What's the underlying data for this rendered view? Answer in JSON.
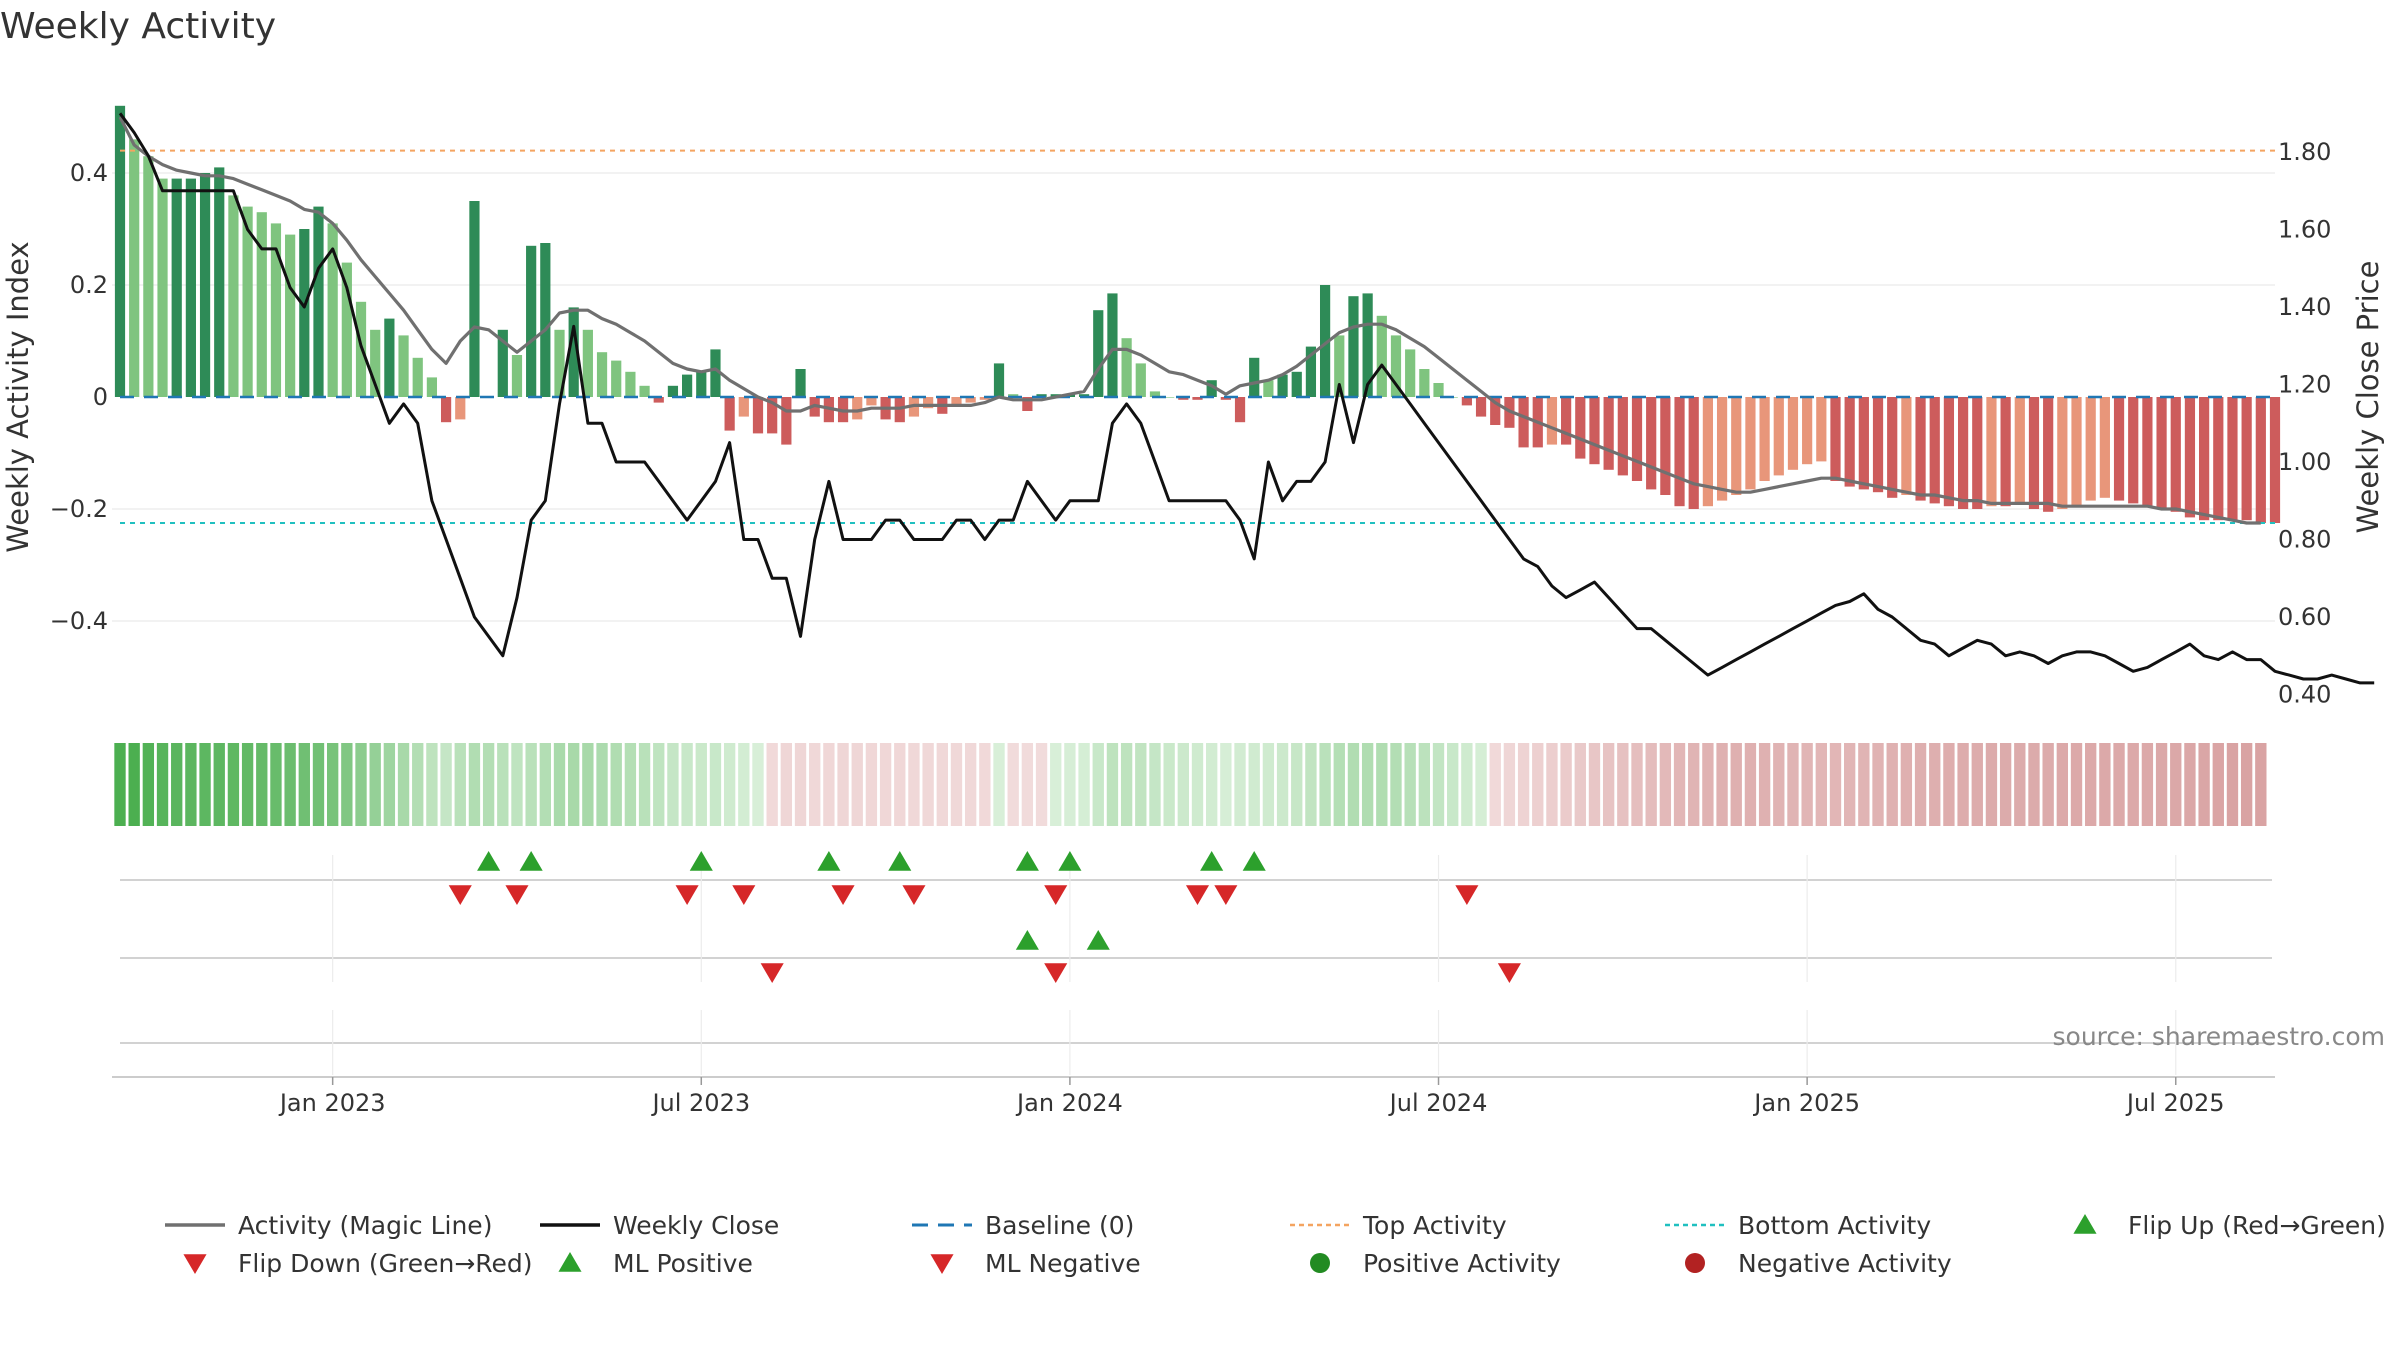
{
  "title": "Weekly Activity",
  "source": "source: sharemaestro.com",
  "chart_data": {
    "type": "bar",
    "title": "Weekly Activity",
    "ylabel_left": "Weekly Activity Index",
    "ylabel_right": "Weekly Close Price",
    "ylim_left": [
      -0.56,
      0.53
    ],
    "ylim_right": [
      0.38,
      1.94
    ],
    "left_ticks": [
      {
        "value": 0.4,
        "label": "0.4"
      },
      {
        "value": 0.2,
        "label": "0.2"
      },
      {
        "value": 0,
        "label": "0"
      },
      {
        "value": -0.2,
        "label": "−0.2"
      },
      {
        "value": -0.4,
        "label": "−0.4"
      }
    ],
    "right_ticks": [
      {
        "value": 1.8,
        "label": "1.80"
      },
      {
        "value": 1.6,
        "label": "1.60"
      },
      {
        "value": 1.4,
        "label": "1.40"
      },
      {
        "value": 1.2,
        "label": "1.20"
      },
      {
        "value": 1.0,
        "label": "1.00"
      },
      {
        "value": 0.8,
        "label": "0.80"
      },
      {
        "value": 0.6,
        "label": "0.60"
      },
      {
        "value": 0.4,
        "label": "0.40"
      }
    ],
    "x_ticks": [
      {
        "week": 15,
        "label": "Jan 2023"
      },
      {
        "week": 41,
        "label": "Jul 2023"
      },
      {
        "week": 67,
        "label": "Jan 2024"
      },
      {
        "week": 93,
        "label": "Jul 2024"
      },
      {
        "week": 119,
        "label": "Jan 2025"
      },
      {
        "week": 145,
        "label": "Jul 2025"
      }
    ],
    "top_activity": 0.44,
    "bottom_activity": -0.225,
    "activity": [
      0.52,
      0.46,
      0.43,
      0.39,
      0.39,
      0.39,
      0.4,
      0.41,
      0.36,
      0.34,
      0.33,
      0.31,
      0.29,
      0.3,
      0.34,
      0.31,
      0.24,
      0.17,
      0.12,
      0.14,
      0.11,
      0.07,
      0.035,
      -0.045,
      -0.04,
      0.35,
      0.0,
      0.12,
      0.075,
      0.27,
      0.275,
      0.12,
      0.16,
      0.12,
      0.08,
      0.065,
      0.045,
      0.02,
      -0.01,
      0.02,
      0.04,
      0.045,
      0.085,
      -0.06,
      -0.035,
      -0.065,
      -0.065,
      -0.085,
      0.05,
      -0.035,
      -0.045,
      -0.045,
      -0.04,
      -0.015,
      -0.04,
      -0.045,
      -0.035,
      -0.02,
      -0.03,
      -0.015,
      -0.01,
      -0.005,
      0.06,
      0.005,
      -0.025,
      0.005,
      0.005,
      0.005,
      0.005,
      0.155,
      0.185,
      0.105,
      0.06,
      0.01,
      0.0,
      -0.005,
      -0.005,
      0.03,
      -0.005,
      -0.045,
      0.07,
      0.03,
      0.04,
      0.045,
      0.09,
      0.2,
      0.11,
      0.18,
      0.185,
      0.145,
      0.11,
      0.085,
      0.05,
      0.025,
      0.0,
      -0.015,
      -0.035,
      -0.05,
      -0.055,
      -0.09,
      -0.09,
      -0.085,
      -0.085,
      -0.11,
      -0.12,
      -0.13,
      -0.14,
      -0.15,
      -0.165,
      -0.175,
      -0.195,
      -0.2,
      -0.195,
      -0.185,
      -0.175,
      -0.165,
      -0.15,
      -0.14,
      -0.13,
      -0.12,
      -0.115,
      -0.15,
      -0.16,
      -0.165,
      -0.17,
      -0.18,
      -0.175,
      -0.185,
      -0.19,
      -0.195,
      -0.2,
      -0.2,
      -0.195,
      -0.195,
      -0.19,
      -0.2,
      -0.205,
      -0.2,
      -0.195,
      -0.185,
      -0.18,
      -0.185,
      -0.19,
      -0.195,
      -0.2,
      -0.205,
      -0.215,
      -0.22,
      -0.22,
      -0.22,
      -0.22,
      -0.225,
      -0.225
    ],
    "magic_line": [
      0.5,
      0.45,
      0.43,
      0.415,
      0.405,
      0.4,
      0.395,
      0.395,
      0.39,
      0.38,
      0.37,
      0.36,
      0.35,
      0.335,
      0.33,
      0.31,
      0.28,
      0.245,
      0.215,
      0.185,
      0.155,
      0.12,
      0.085,
      0.06,
      0.1,
      0.125,
      0.12,
      0.1,
      0.08,
      0.1,
      0.12,
      0.15,
      0.155,
      0.155,
      0.14,
      0.13,
      0.115,
      0.1,
      0.08,
      0.06,
      0.05,
      0.045,
      0.05,
      0.03,
      0.015,
      0.0,
      -0.01,
      -0.025,
      -0.025,
      -0.015,
      -0.02,
      -0.025,
      -0.025,
      -0.02,
      -0.02,
      -0.02,
      -0.015,
      -0.015,
      -0.015,
      -0.015,
      -0.015,
      -0.01,
      0.0,
      -0.005,
      -0.005,
      -0.005,
      0.0,
      0.005,
      0.01,
      0.05,
      0.085,
      0.085,
      0.075,
      0.06,
      0.045,
      0.04,
      0.03,
      0.02,
      0.005,
      0.02,
      0.025,
      0.03,
      0.04,
      0.055,
      0.075,
      0.095,
      0.115,
      0.125,
      0.13,
      0.13,
      0.12,
      0.105,
      0.09,
      0.07,
      0.05,
      0.03,
      0.01,
      -0.01,
      -0.025,
      -0.035,
      -0.045,
      -0.055,
      -0.065,
      -0.075,
      -0.085,
      -0.095,
      -0.105,
      -0.115,
      -0.125,
      -0.135,
      -0.145,
      -0.155,
      -0.16,
      -0.165,
      -0.17,
      -0.17,
      -0.165,
      -0.16,
      -0.155,
      -0.15,
      -0.145,
      -0.145,
      -0.15,
      -0.155,
      -0.16,
      -0.165,
      -0.17,
      -0.175,
      -0.175,
      -0.18,
      -0.185,
      -0.185,
      -0.19,
      -0.19,
      -0.19,
      -0.19,
      -0.19,
      -0.195,
      -0.195,
      -0.195,
      -0.195,
      -0.195,
      -0.195,
      -0.195,
      -0.2,
      -0.2,
      -0.205,
      -0.21,
      -0.215,
      -0.22,
      -0.225,
      -0.225
    ],
    "close_points": [
      [
        0,
        1.9
      ],
      [
        1,
        1.85
      ],
      [
        2,
        1.79
      ],
      [
        3,
        1.7
      ],
      [
        4,
        1.7
      ],
      [
        5,
        1.7
      ],
      [
        6,
        1.7
      ],
      [
        7,
        1.7
      ],
      [
        8,
        1.7
      ],
      [
        9,
        1.6
      ],
      [
        10,
        1.55
      ],
      [
        11,
        1.55
      ],
      [
        12,
        1.45
      ],
      [
        13,
        1.4
      ],
      [
        14,
        1.5
      ],
      [
        15,
        1.55
      ],
      [
        16,
        1.45
      ],
      [
        17,
        1.3
      ],
      [
        18,
        1.2
      ],
      [
        19,
        1.1
      ],
      [
        20,
        1.15
      ],
      [
        21,
        1.1
      ],
      [
        22,
        0.9
      ],
      [
        23,
        0.8
      ],
      [
        24,
        0.7
      ],
      [
        25,
        0.6
      ],
      [
        26,
        0.55
      ],
      [
        27,
        0.5
      ],
      [
        28,
        0.65
      ],
      [
        29,
        0.85
      ],
      [
        30,
        0.9
      ],
      [
        31,
        1.15
      ],
      [
        32,
        1.35
      ],
      [
        33,
        1.1
      ],
      [
        34,
        1.1
      ],
      [
        35,
        1.0
      ],
      [
        36,
        1.0
      ],
      [
        37,
        1.0
      ],
      [
        38,
        0.95
      ],
      [
        39,
        0.9
      ],
      [
        40,
        0.85
      ],
      [
        41,
        0.9
      ],
      [
        42,
        0.95
      ],
      [
        43,
        1.05
      ],
      [
        44,
        0.8
      ],
      [
        45,
        0.8
      ],
      [
        46,
        0.7
      ],
      [
        47,
        0.7
      ],
      [
        48,
        0.55
      ],
      [
        49,
        0.8
      ],
      [
        50,
        0.95
      ],
      [
        51,
        0.8
      ],
      [
        52,
        0.8
      ],
      [
        53,
        0.8
      ],
      [
        54,
        0.85
      ],
      [
        55,
        0.85
      ],
      [
        56,
        0.8
      ],
      [
        57,
        0.8
      ],
      [
        58,
        0.8
      ],
      [
        59,
        0.85
      ],
      [
        60,
        0.85
      ],
      [
        61,
        0.8
      ],
      [
        62,
        0.85
      ],
      [
        63,
        0.85
      ],
      [
        64,
        0.95
      ],
      [
        65,
        0.9
      ],
      [
        66,
        0.85
      ],
      [
        67,
        0.9
      ],
      [
        68,
        0.9
      ],
      [
        69,
        0.9
      ],
      [
        70,
        1.1
      ],
      [
        71,
        1.15
      ],
      [
        72,
        1.1
      ],
      [
        73,
        1.0
      ],
      [
        74,
        0.9
      ],
      [
        75,
        0.9
      ],
      [
        76,
        0.9
      ],
      [
        77,
        0.9
      ],
      [
        78,
        0.9
      ],
      [
        79,
        0.85
      ],
      [
        80,
        0.75
      ],
      [
        81,
        1.0
      ],
      [
        82,
        0.9
      ],
      [
        83,
        0.95
      ],
      [
        84,
        0.95
      ],
      [
        85,
        1.0
      ],
      [
        86,
        1.2
      ],
      [
        87,
        1.05
      ],
      [
        88,
        1.2
      ],
      [
        89,
        1.25
      ],
      [
        90,
        1.2
      ],
      [
        91,
        1.15
      ],
      [
        92,
        1.1
      ],
      [
        93,
        1.05
      ],
      [
        94,
        1.0
      ],
      [
        95,
        0.95
      ],
      [
        96,
        0.9
      ],
      [
        97,
        0.85
      ],
      [
        98,
        0.8
      ],
      [
        99,
        0.75
      ],
      [
        100,
        0.73
      ],
      [
        101,
        0.68
      ],
      [
        102,
        0.65
      ],
      [
        103,
        0.67
      ],
      [
        104,
        0.69
      ],
      [
        105,
        0.65
      ],
      [
        106,
        0.61
      ],
      [
        107,
        0.57
      ],
      [
        108,
        0.57
      ],
      [
        109,
        0.54
      ],
      [
        110,
        0.51
      ],
      [
        111,
        0.48
      ],
      [
        112,
        0.45
      ],
      [
        113,
        0.47
      ],
      [
        114,
        0.49
      ],
      [
        115,
        0.51
      ],
      [
        116,
        0.53
      ],
      [
        117,
        0.55
      ],
      [
        118,
        0.57
      ],
      [
        119,
        0.59
      ],
      [
        120,
        0.61
      ],
      [
        121,
        0.63
      ],
      [
        122,
        0.64
      ],
      [
        123,
        0.66
      ],
      [
        124,
        0.62
      ],
      [
        125,
        0.6
      ],
      [
        126,
        0.57
      ],
      [
        127,
        0.54
      ],
      [
        128,
        0.53
      ],
      [
        129,
        0.5
      ],
      [
        130,
        0.52
      ],
      [
        131,
        0.54
      ],
      [
        132,
        0.53
      ],
      [
        133,
        0.5
      ],
      [
        134,
        0.51
      ],
      [
        135,
        0.5
      ],
      [
        136,
        0.48
      ],
      [
        137,
        0.5
      ],
      [
        138,
        0.51
      ],
      [
        139,
        0.51
      ],
      [
        140,
        0.5
      ],
      [
        141,
        0.48
      ],
      [
        142,
        0.46
      ],
      [
        143,
        0.47
      ],
      [
        144,
        0.49
      ],
      [
        145,
        0.51
      ],
      [
        146,
        0.53
      ],
      [
        147,
        0.5
      ],
      [
        148,
        0.49
      ],
      [
        149,
        0.51
      ],
      [
        150,
        0.49
      ],
      [
        151,
        0.49
      ],
      [
        152,
        0.46
      ],
      [
        153,
        0.45
      ],
      [
        154,
        0.44
      ],
      [
        155,
        0.44
      ],
      [
        156,
        0.45
      ],
      [
        157,
        0.44
      ],
      [
        158,
        0.43
      ],
      [
        159,
        0.43
      ]
    ],
    "flip_up_weeks": [
      26,
      29,
      41,
      50,
      55,
      64,
      67,
      77,
      80
    ],
    "flip_down_weeks": [
      24,
      28,
      40,
      44,
      51,
      56,
      66,
      76,
      78,
      95
    ],
    "ml_positive_weeks": [
      64,
      69
    ],
    "ml_negative_weeks": [
      46,
      66,
      98
    ],
    "colors": {
      "strong_green": "#2e8b57",
      "light_green": "#7fc47f",
      "strong_red": "#cd5c5c",
      "light_red": "#e8967a",
      "magic_line": "#707070",
      "close": "#111111",
      "baseline": "#1f77b4",
      "top_activity": "#f4a460",
      "bottom_activity": "#20c0c0",
      "flip_up": "#2ca02c",
      "flip_down": "#d62728",
      "positive_dot": "#228b22",
      "negative_dot": "#b22222"
    },
    "legend": [
      {
        "key": "magic",
        "label": "Activity (Magic Line)"
      },
      {
        "key": "close",
        "label": "Weekly Close"
      },
      {
        "key": "baseline",
        "label": "Baseline (0)"
      },
      {
        "key": "top",
        "label": "Top Activity"
      },
      {
        "key": "bottom",
        "label": "Bottom Activity"
      },
      {
        "key": "flipup",
        "label": "Flip Up (Red→Green)"
      },
      {
        "key": "flipdown",
        "label": "Flip Down (Green→Red)"
      },
      {
        "key": "mlpos",
        "label": "ML Positive"
      },
      {
        "key": "mlneg",
        "label": "ML Negative"
      },
      {
        "key": "posdot",
        "label": "Positive Activity"
      },
      {
        "key": "negdot",
        "label": "Negative Activity"
      }
    ]
  }
}
